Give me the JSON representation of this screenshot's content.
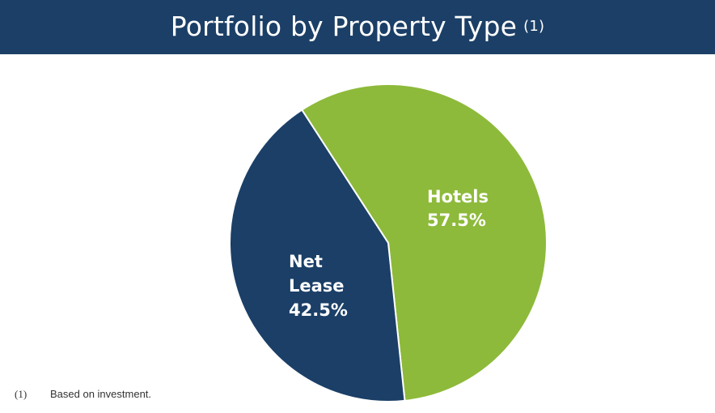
{
  "header": {
    "title": "Portfolio by Property Type",
    "superscript": "(1)"
  },
  "footnote": {
    "marker": "(1)",
    "text": "Based on investment."
  },
  "colors": {
    "header_bg": "#1b3f67",
    "hotels": "#8dba3a",
    "net_lease": "#1b3f67"
  },
  "chart_data": {
    "type": "pie",
    "slices": [
      {
        "label_lines": [
          "Hotels"
        ],
        "value_text": "57.5%",
        "value": 57.5,
        "color": "#8dba3a"
      },
      {
        "label_lines": [
          "Net",
          "Lease"
        ],
        "value_text": "42.5%",
        "value": 42.5,
        "color": "#1b3f67"
      }
    ]
  }
}
